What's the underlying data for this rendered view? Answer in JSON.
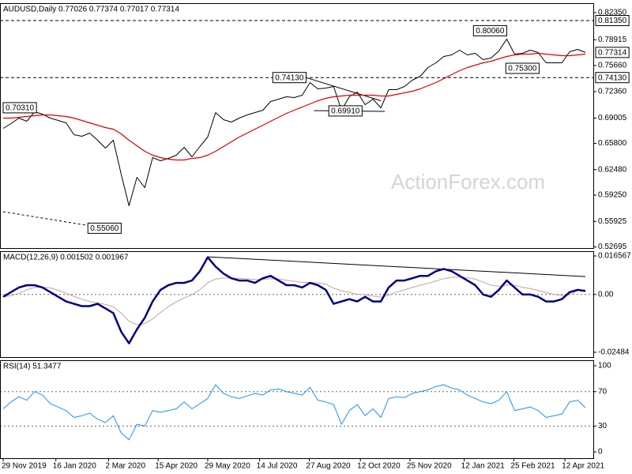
{
  "chart_data": [
    {
      "type": "line",
      "title": "AUDUSD,Daily 0.77026 0.77374 0.77017 0.77314",
      "watermark": "ActionForex.com",
      "xlim": [
        -0.4,
        75
      ],
      "ylim": [
        0.5255,
        0.8355
      ],
      "yticks": [
        {
          "value": 0.8235,
          "label": "0.82350"
        },
        0.78915,
        {
          "value": 0.7566,
          "label": "0.75660"
        },
        {
          "value": 0.7236,
          "label": "0.72360"
        },
        0.69005,
        {
          "value": 0.658,
          "label": "0.65800"
        },
        {
          "value": 0.6248,
          "label": "0.62480"
        },
        {
          "value": 0.5925,
          "label": "0.59250"
        },
        0.55925,
        0.52695
      ],
      "series": [
        {
          "color": "#000000",
          "width": 1,
          "values": [
            0.677,
            0.683,
            0.69,
            0.686,
            0.698,
            0.695,
            0.69,
            0.687,
            0.684,
            0.669,
            0.667,
            0.671,
            0.662,
            0.652,
            0.662,
            0.619,
            0.579,
            0.615,
            0.602,
            0.64,
            0.636,
            0.639,
            0.643,
            0.653,
            0.641,
            0.654,
            0.666,
            0.697,
            0.688,
            0.685,
            0.69,
            0.694,
            0.697,
            0.7,
            0.711,
            0.714,
            0.717,
            0.716,
            0.719,
            0.735,
            0.727,
            0.728,
            0.73,
            0.7,
            0.717,
            0.723,
            0.707,
            0.714,
            0.703,
            0.726,
            0.726,
            0.73,
            0.738,
            0.743,
            0.754,
            0.76,
            0.768,
            0.77,
            0.776,
            0.77,
            0.772,
            0.764,
            0.766,
            0.775,
            0.79,
            0.771,
            0.772,
            0.776,
            0.773,
            0.76,
            0.76,
            0.76,
            0.774,
            0.777,
            0.77314
          ]
        },
        {
          "color": "#e00000",
          "width": 1.2,
          "values": [
            0.69,
            0.69,
            0.691,
            0.692,
            0.693,
            0.694,
            0.694,
            0.693,
            0.692,
            0.69,
            0.687,
            0.684,
            0.681,
            0.678,
            0.676,
            0.67,
            0.662,
            0.655,
            0.648,
            0.643,
            0.64,
            0.638,
            0.637,
            0.637,
            0.639,
            0.64,
            0.643,
            0.648,
            0.654,
            0.66,
            0.666,
            0.671,
            0.676,
            0.681,
            0.686,
            0.691,
            0.696,
            0.7,
            0.704,
            0.708,
            0.712,
            0.715,
            0.717,
            0.718,
            0.719,
            0.719,
            0.719,
            0.719,
            0.718,
            0.718,
            0.72,
            0.722,
            0.724,
            0.727,
            0.731,
            0.735,
            0.74,
            0.745,
            0.75,
            0.754,
            0.757,
            0.76,
            0.762,
            0.765,
            0.768,
            0.77,
            0.771,
            0.771,
            0.772,
            0.771,
            0.77,
            0.769,
            0.769,
            0.77,
            0.771
          ]
        }
      ],
      "levels": [
        {
          "value": 0.8135,
          "label": "0.81350",
          "dash": true
        },
        {
          "value": 0.7413,
          "label": "0.74130",
          "dash": true
        },
        {
          "value": 0.77314,
          "label": "0.77314",
          "dash": false
        }
      ],
      "annotations": [
        {
          "label": "0.70310",
          "x": 0,
          "value": 0.7031,
          "side": "right"
        },
        {
          "label": "0.55060",
          "x": 15,
          "value": 0.5506,
          "side": "left"
        },
        {
          "label": "0.74130",
          "x": 38.5,
          "value": 0.7413,
          "side": "left"
        },
        {
          "label": "0.69910",
          "x": 43.5,
          "value": 0.6991,
          "side": "center"
        },
        {
          "label": "0.80060",
          "x": 64,
          "value": 0.8006,
          "side": "left"
        },
        {
          "label": "0.75300",
          "x": 66,
          "value": 0.753,
          "side": "center"
        }
      ],
      "trendlines": [
        {
          "x": [
            0,
            12.4
          ],
          "values": [
            0.5715,
            0.5515
          ],
          "dash": true
        },
        {
          "x": [
            38.5,
            48
          ],
          "values": [
            0.7413,
            0.712
          ],
          "dash": false
        },
        {
          "x": [
            39.5,
            48.5
          ],
          "values": [
            0.6995,
            0.6985
          ],
          "dash": false
        }
      ]
    },
    {
      "type": "line",
      "title": "MACD(12,26,9) 0.001502 0.001967",
      "xlim": [
        -0.4,
        75
      ],
      "ylim": [
        -0.0269,
        0.0186
      ],
      "yticks": [
        0.016567,
        {
          "value": 0,
          "label": "0.00"
        },
        -0.02484
      ],
      "levels": [
        {
          "value": 0,
          "dash": true
        }
      ],
      "series": [
        {
          "color": "#c8a0a0",
          "width": 1,
          "values": [
            -0.001,
            -0.0005,
            0.0005,
            0.002,
            0.003,
            0.0033,
            0.0028,
            0.0018,
            0.0005,
            -0.0008,
            -0.002,
            -0.003,
            -0.0036,
            -0.0043,
            -0.0053,
            -0.008,
            -0.0115,
            -0.013,
            -0.0125,
            -0.0105,
            -0.0077,
            -0.0052,
            -0.0032,
            -0.0015,
            0.0,
            0.002,
            0.005,
            0.0066,
            0.0071,
            0.0071,
            0.0069,
            0.0067,
            0.0064,
            0.0065,
            0.0068,
            0.0066,
            0.0061,
            0.0057,
            0.0052,
            0.0052,
            0.005,
            0.0044,
            0.0027,
            0.0016,
            0.0009,
            0.0001,
            -0.0001,
            -0.0007,
            -0.0012,
            -0.0003,
            0.001,
            0.002,
            0.003,
            0.004,
            0.0048,
            0.0058,
            0.0068,
            0.0074,
            0.0075,
            0.0072,
            0.0066,
            0.0053,
            0.004,
            0.0036,
            0.0041,
            0.0039,
            0.0031,
            0.0025,
            0.0018,
            0.0008,
            0.0,
            -0.0004,
            -0.0001,
            0.0017,
            0.001967
          ]
        },
        {
          "color": "#000080",
          "width": 2.5,
          "values": [
            -0.001,
            0.001,
            0.003,
            0.004,
            0.004,
            0.003,
            0.001,
            -0.001,
            -0.003,
            -0.004,
            -0.005,
            -0.005,
            -0.004,
            -0.006,
            -0.008,
            -0.016,
            -0.021,
            -0.015,
            -0.01,
            -0.003,
            0.002,
            0.004,
            0.005,
            0.005,
            0.006,
            0.01,
            0.016,
            0.012,
            0.009,
            0.007,
            0.006,
            0.006,
            0.005,
            0.007,
            0.008,
            0.006,
            0.004,
            0.004,
            0.003,
            0.005,
            0.004,
            0.002,
            -0.004,
            -0.003,
            -0.002,
            -0.003,
            -0.001,
            -0.003,
            -0.003,
            0.003,
            0.006,
            0.006,
            0.007,
            0.008,
            0.008,
            0.01,
            0.011,
            0.01,
            0.008,
            0.006,
            0.004,
            0.0,
            -0.001,
            0.002,
            0.006,
            0.003,
            0.0,
            0.0,
            -0.001,
            -0.003,
            -0.003,
            -0.002,
            0.001,
            0.002,
            0.001502
          ]
        }
      ],
      "trendlines": [
        {
          "x": [
            26,
            74
          ],
          "values": [
            0.0162,
            0.0077
          ],
          "dash": false
        }
      ]
    },
    {
      "type": "line",
      "title": "RSI(14) 51.3477",
      "xlim": [
        -0.4,
        75
      ],
      "ylim": [
        -7.3,
        106.4
      ],
      "yticks": [
        100,
        70,
        30,
        0
      ],
      "levels": [
        {
          "value": 70,
          "dash": true
        },
        {
          "value": 30,
          "dash": true
        }
      ],
      "series": [
        {
          "color": "#1e90ff",
          "width": 1,
          "values": [
            50,
            58,
            64,
            60,
            70,
            66,
            56,
            52,
            48,
            40,
            42,
            45,
            38,
            34,
            42,
            22,
            14,
            32,
            30,
            48,
            46,
            48,
            50,
            58,
            50,
            56,
            62,
            78,
            68,
            64,
            62,
            65,
            68,
            66,
            72,
            73,
            70,
            68,
            66,
            75,
            60,
            58,
            55,
            32,
            48,
            55,
            42,
            50,
            40,
            62,
            64,
            63,
            68,
            70,
            72,
            76,
            78,
            74,
            72,
            66,
            62,
            58,
            56,
            60,
            70,
            48,
            50,
            52,
            48,
            40,
            42,
            44,
            58,
            60,
            51.3477
          ]
        }
      ],
      "xticks": [
        {
          "value": 0,
          "label": "29 Nov 2019"
        },
        {
          "value": 6.7,
          "label": "16 Jan 2020"
        },
        {
          "value": 13.4,
          "label": "2 Mar 2020"
        },
        {
          "value": 19.7,
          "label": "15 Apr 2020"
        },
        {
          "value": 26,
          "label": "29 May 2020"
        },
        {
          "value": 32.6,
          "label": "14 Jul 2020"
        },
        {
          "value": 38.9,
          "label": "27 Aug 2020"
        },
        {
          "value": 45.4,
          "label": "12 Oct 2020"
        },
        {
          "value": 51.7,
          "label": "25 Nov 2020"
        },
        {
          "value": 58.6,
          "label": "12 Jan 2021"
        },
        {
          "value": 64.9,
          "label": "25 Feb 2021"
        },
        {
          "value": 71.4,
          "label": "12 Apr 2021"
        }
      ]
    }
  ]
}
